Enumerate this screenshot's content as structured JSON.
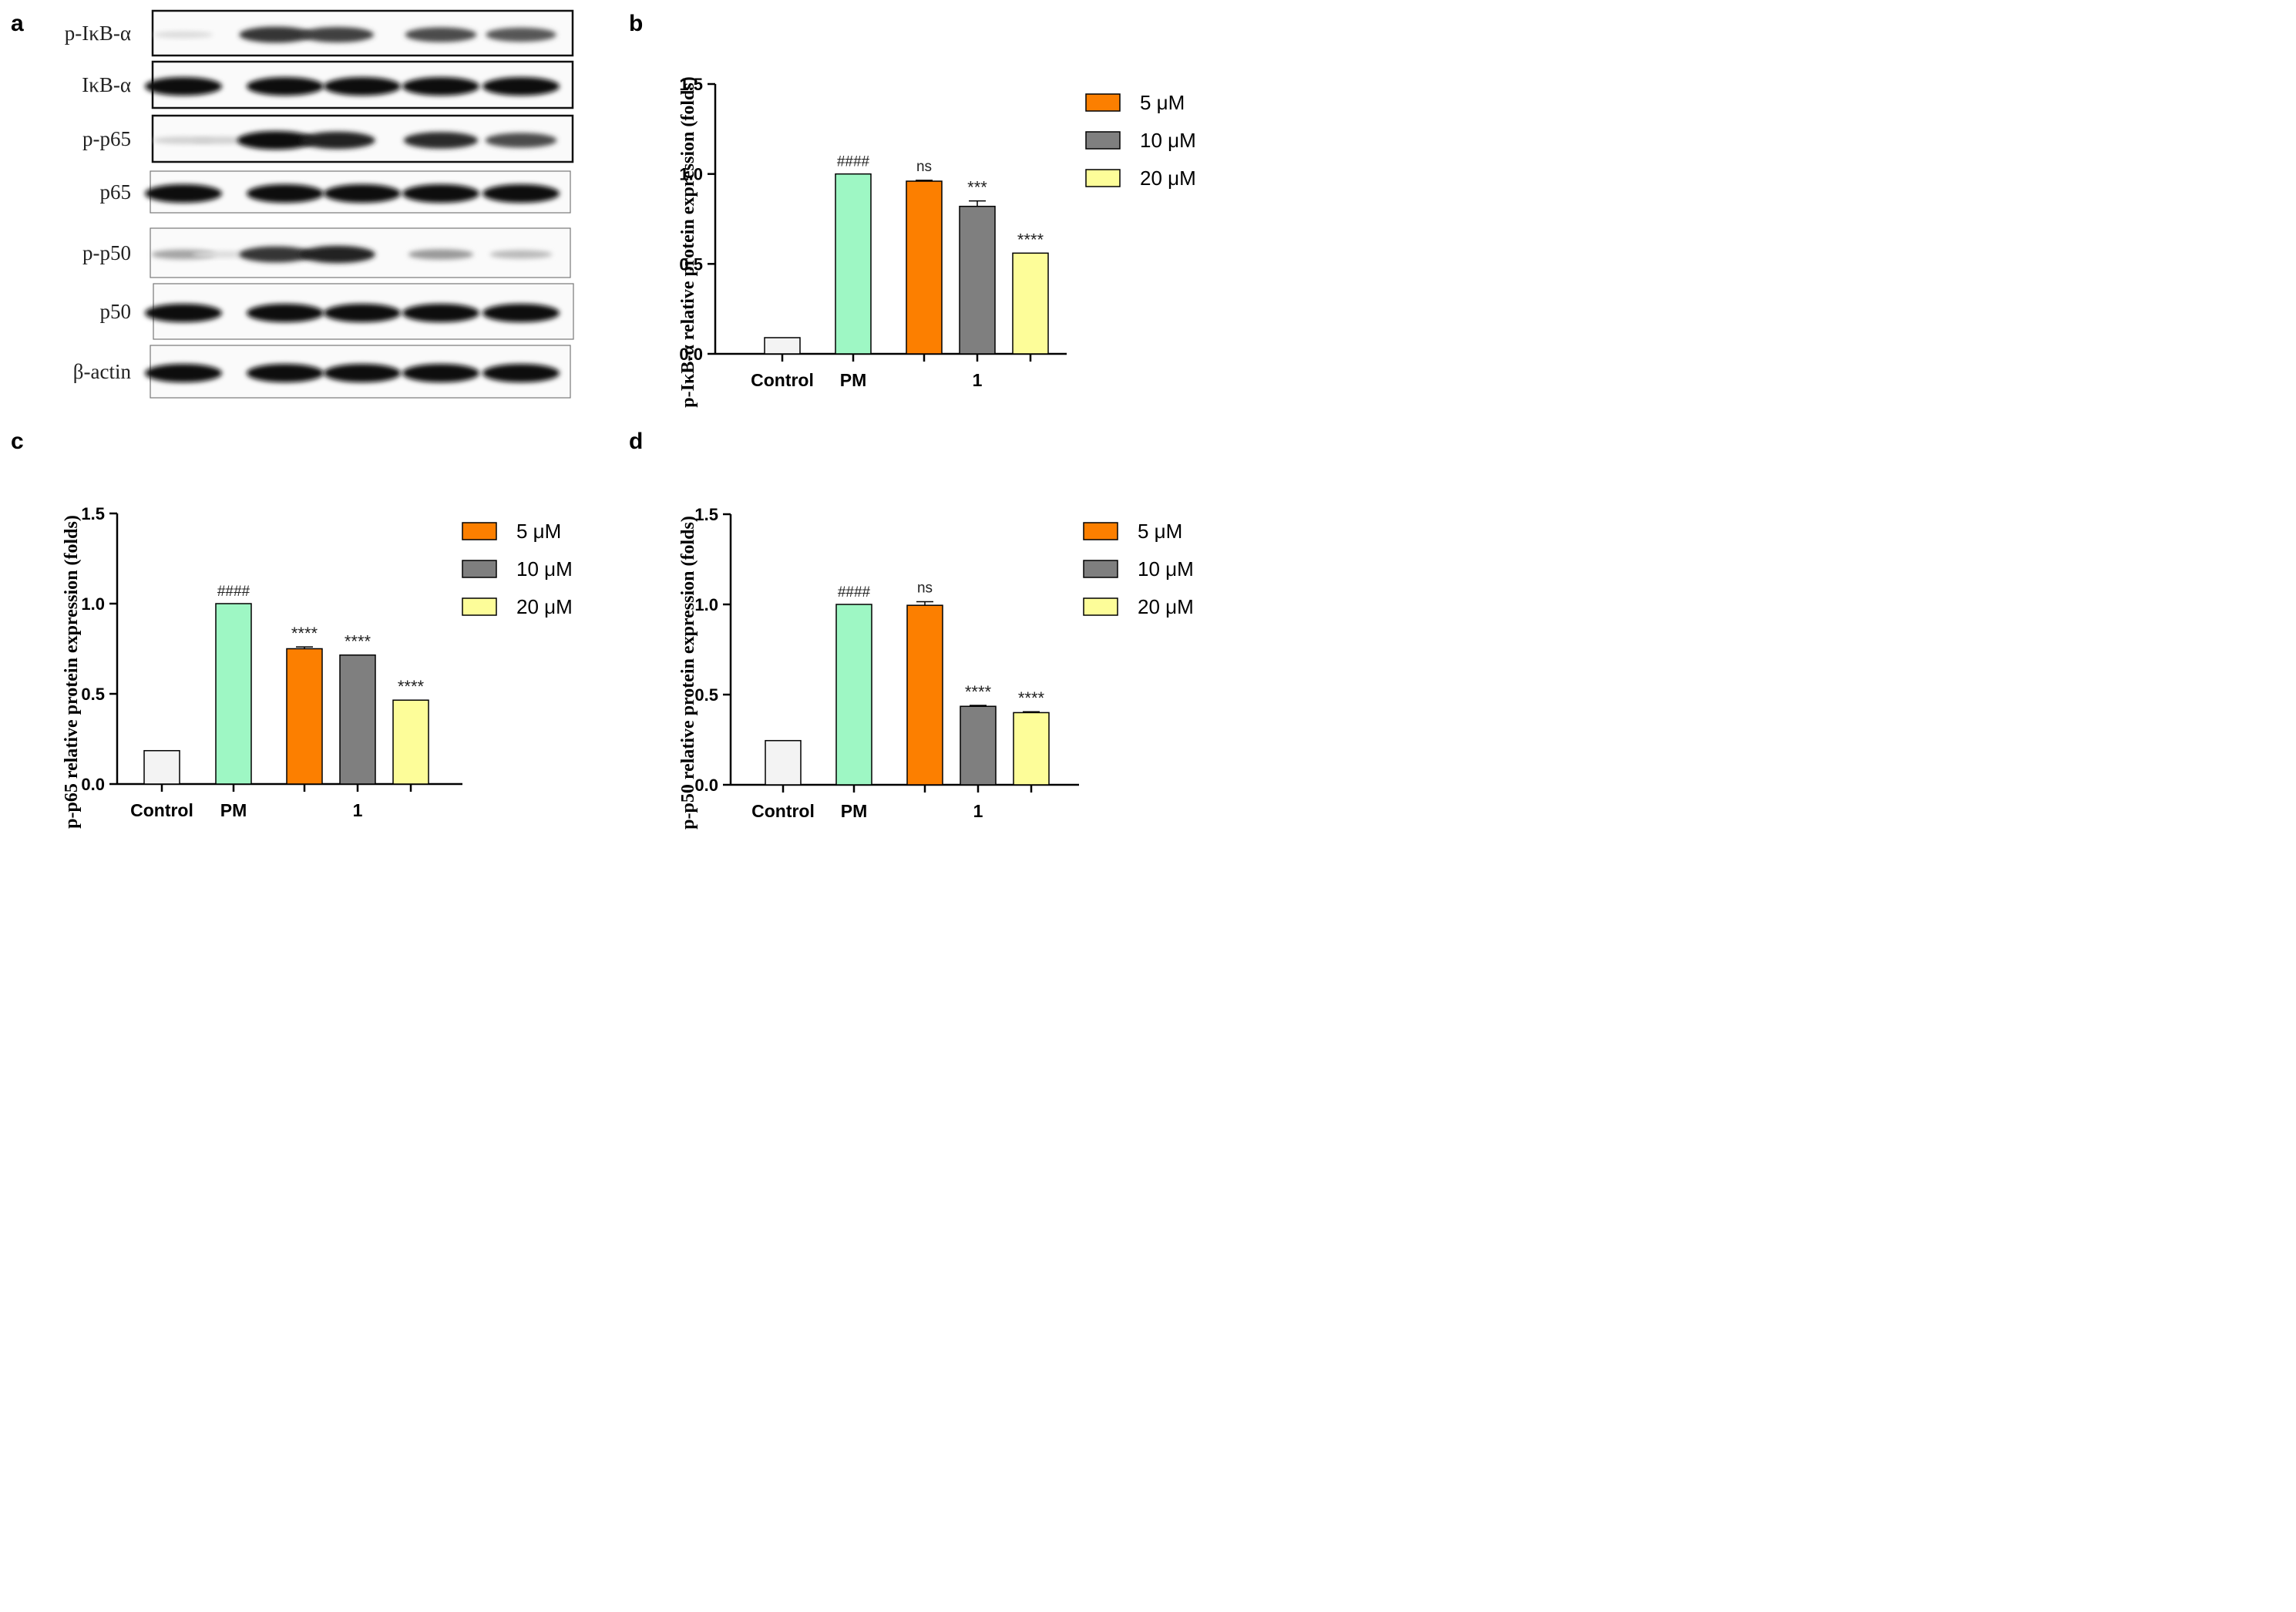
{
  "panels": {
    "a": "a",
    "b": "b",
    "c": "c",
    "d": "d"
  },
  "colors": {
    "control": "#f3f3f3",
    "pm": "#9ef7c4",
    "5uM": "#fc7f00",
    "10uM": "#7f7f7f",
    "20uM": "#fdfd99"
  },
  "blot": {
    "rows": [
      {
        "label": "p-IκB-α",
        "intensities": [
          0.05,
          0.0,
          0.8,
          0.75,
          0.7,
          0.65
        ]
      },
      {
        "label": "IκB-α",
        "intensities": [
          1,
          1,
          1,
          1,
          1,
          1
        ]
      },
      {
        "label": "p-p65",
        "intensities": [
          0.1,
          0.1,
          1,
          0.9,
          0.85,
          0.7
        ]
      },
      {
        "label": "p65",
        "intensities": [
          1,
          1,
          1,
          1,
          1,
          1
        ]
      },
      {
        "label": "p-p50",
        "intensities": [
          0.3,
          0.05,
          0.8,
          0.9,
          0.35,
          0.2
        ]
      },
      {
        "label": "p50",
        "intensities": [
          1,
          1,
          1,
          1,
          1,
          1
        ]
      },
      {
        "label": "β-actin",
        "intensities": [
          1,
          1,
          1,
          1,
          1,
          1
        ]
      }
    ]
  },
  "chart_data": [
    {
      "panel": "b",
      "type": "bar",
      "ylabel": "p-IκB-α relative protein expression (folds)",
      "ylim": [
        0,
        1.5
      ],
      "yticks": [
        "0.0",
        "0.5",
        "1.0",
        "1.5"
      ],
      "categories": [
        "Control",
        "PM",
        "1"
      ],
      "bars": [
        {
          "group": "Control",
          "value": 0.09,
          "err": 0.0,
          "color_key": "control",
          "annotation": ""
        },
        {
          "group": "PM",
          "value": 1.0,
          "err": 0.0,
          "color_key": "pm",
          "annotation": "####"
        },
        {
          "group": "1",
          "value": 0.96,
          "err": 0.005,
          "color_key": "5uM",
          "annotation": "ns"
        },
        {
          "group": "1",
          "value": 0.82,
          "err": 0.03,
          "color_key": "10uM",
          "annotation": "***"
        },
        {
          "group": "1",
          "value": 0.56,
          "err": 0.0,
          "color_key": "20uM",
          "annotation": "****"
        }
      ],
      "legend": [
        "5 μM",
        "10 μM",
        "20 μM"
      ]
    },
    {
      "panel": "c",
      "type": "bar",
      "ylabel": "p-p65 relative protein expression (folds)",
      "ylim": [
        0,
        1.5
      ],
      "yticks": [
        "0.0",
        "0.5",
        "1.0",
        "1.5"
      ],
      "categories": [
        "Control",
        "PM",
        "1"
      ],
      "bars": [
        {
          "group": "Control",
          "value": 0.185,
          "err": 0.0,
          "color_key": "control",
          "annotation": ""
        },
        {
          "group": "PM",
          "value": 1.0,
          "err": 0.0,
          "color_key": "pm",
          "annotation": "####"
        },
        {
          "group": "1",
          "value": 0.75,
          "err": 0.01,
          "color_key": "5uM",
          "annotation": "****"
        },
        {
          "group": "1",
          "value": 0.715,
          "err": 0.0,
          "color_key": "10uM",
          "annotation": "****"
        },
        {
          "group": "1",
          "value": 0.465,
          "err": 0.0,
          "color_key": "20uM",
          "annotation": "****"
        }
      ],
      "legend": [
        "5 μM",
        "10 μM",
        "20 μM"
      ]
    },
    {
      "panel": "d",
      "type": "bar",
      "ylabel": "p-p50 relative protein expression (folds)",
      "ylim": [
        0,
        1.5
      ],
      "yticks": [
        "0.0",
        "0.5",
        "1.0",
        "1.5"
      ],
      "categories": [
        "Control",
        "PM",
        "1"
      ],
      "bars": [
        {
          "group": "Control",
          "value": 0.245,
          "err": 0.0,
          "color_key": "control",
          "annotation": ""
        },
        {
          "group": "PM",
          "value": 1.0,
          "err": 0.0,
          "color_key": "pm",
          "annotation": "####"
        },
        {
          "group": "1",
          "value": 0.995,
          "err": 0.02,
          "color_key": "5uM",
          "annotation": "ns"
        },
        {
          "group": "1",
          "value": 0.435,
          "err": 0.005,
          "color_key": "10uM",
          "annotation": "****"
        },
        {
          "group": "1",
          "value": 0.4,
          "err": 0.005,
          "color_key": "20uM",
          "annotation": "****"
        }
      ],
      "legend": [
        "5 μM",
        "10 μM",
        "20 μM"
      ]
    }
  ]
}
